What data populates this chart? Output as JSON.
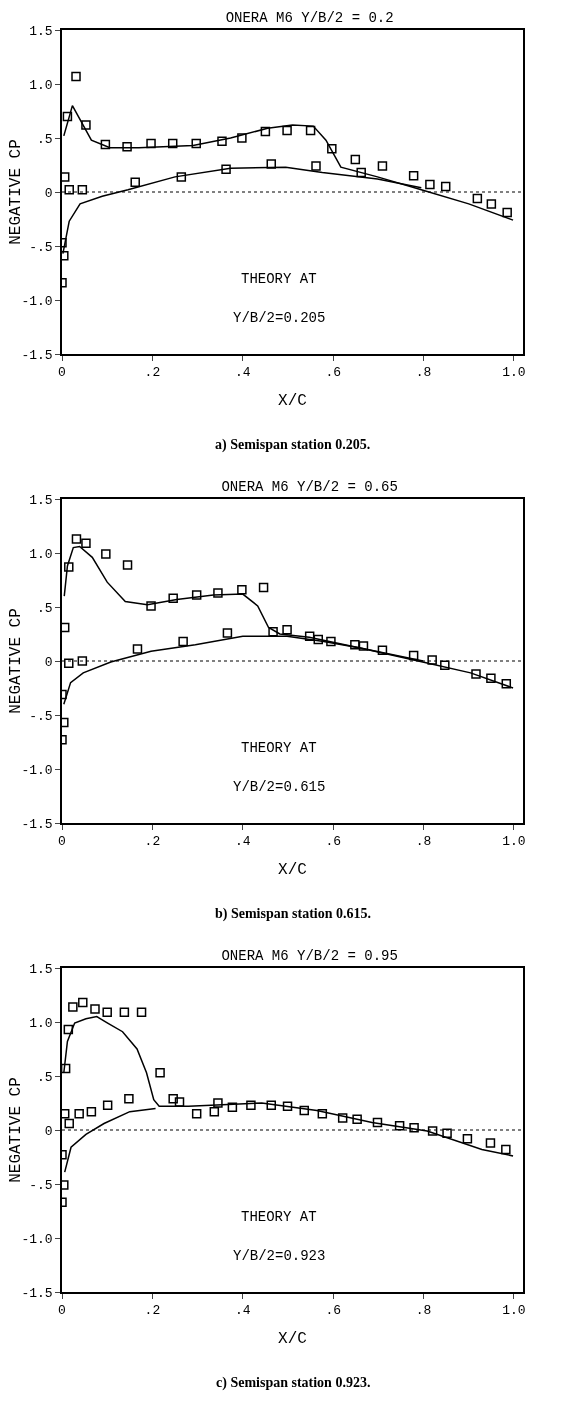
{
  "chart_data": [
    {
      "type": "scatter",
      "title": "ONERA M6 Y/B/2 = 0.2",
      "xlabel": "X/C",
      "ylabel": "NEGATIVE CP",
      "annotations": [
        "THEORY AT",
        "Y/B/2=0.205",
        "a) Semispan station 0.205."
      ],
      "xlim": [
        0,
        1.02
      ],
      "xticks": [
        {
          "value": 0,
          "label": "0"
        },
        {
          "value": 0.2,
          "label": ".2"
        },
        {
          "value": 0.4,
          "label": ".4"
        },
        {
          "value": 0.6,
          "label": ".6"
        },
        {
          "value": 0.8,
          "label": ".8"
        },
        {
          "value": 1,
          "label": "1.0"
        }
      ],
      "ylim": [
        -1.5,
        1.5
      ],
      "yticks": [
        -1.5,
        {
          "value": -1,
          "label": "-1.0"
        },
        {
          "value": -0.5,
          "label": "-.5"
        },
        0,
        {
          "value": 0.5,
          "label": ".5"
        },
        {
          "value": 1,
          "label": "1.0"
        },
        1.5
      ],
      "ref_lines": [
        {
          "axis": "y",
          "value": 0,
          "line_style": "dotted",
          "color": "#000000"
        }
      ],
      "series": [
        {
          "marker": "square",
          "color": "#000000",
          "x": [
            0,
            0.004,
            0,
            0.006,
            0.012,
            0.016,
            0.031,
            0.045,
            0.053,
            0.096,
            0.144,
            0.162,
            0.197,
            0.245,
            0.264,
            0.297,
            0.354,
            0.363,
            0.398,
            0.45,
            0.463,
            0.498,
            0.55,
            0.562,
            0.597,
            0.649,
            0.662,
            0.709,
            0.778,
            0.814,
            0.849,
            0.919,
            0.95,
            0.985
          ],
          "values": [
            -0.84,
            -0.59,
            -0.47,
            0.14,
            0.7,
            0.02,
            1.07,
            0.02,
            0.62,
            0.44,
            0.42,
            0.09,
            0.45,
            0.45,
            0.14,
            0.45,
            0.47,
            0.21,
            0.5,
            0.56,
            0.26,
            0.57,
            0.57,
            0.24,
            0.4,
            0.3,
            0.18,
            0.24,
            0.15,
            0.07,
            0.05,
            -0.06,
            -0.11,
            -0.19
          ]
        },
        {
          "type": "line",
          "color": "#000000",
          "x": [
            0.004,
            0.023,
            0.065,
            0.106,
            0.17,
            0.29,
            0.373,
            0.455,
            0.51,
            0.556,
            0.584,
            0.617,
            0.698,
            0.795,
            0.9,
            0.998
          ],
          "values": [
            0.52,
            0.8,
            0.48,
            0.41,
            0.41,
            0.43,
            0.5,
            0.59,
            0.62,
            0.61,
            0.48,
            0.23,
            0.14,
            0.02,
            -0.11,
            -0.26
          ]
        },
        {
          "type": "line",
          "color": "#000000",
          "x": [
            0.002,
            0.016,
            0.04,
            0.089,
            0.146,
            0.25,
            0.373,
            0.495,
            0.576,
            0.698,
            0.795
          ],
          "values": [
            -0.57,
            -0.27,
            -0.11,
            -0.04,
            0.02,
            0.14,
            0.22,
            0.23,
            0.18,
            0.12,
            0.04
          ]
        }
      ]
    },
    {
      "type": "scatter",
      "title": "ONERA M6 Y/B/2 = 0.65",
      "xlabel": "X/C",
      "ylabel": "NEGATIVE CP",
      "annotations": [
        "THEORY AT",
        "Y/B/2=0.615",
        "b) Semispan station 0.615."
      ],
      "xlim": [
        0,
        1.02
      ],
      "xticks": [
        {
          "value": 0,
          "label": "0"
        },
        {
          "value": 0.2,
          "label": ".2"
        },
        {
          "value": 0.4,
          "label": ".4"
        },
        {
          "value": 0.6,
          "label": ".6"
        },
        {
          "value": 0.8,
          "label": ".8"
        },
        {
          "value": 1,
          "label": "1.0"
        }
      ],
      "ylim": [
        -1.5,
        1.5
      ],
      "yticks": [
        -1.5,
        {
          "value": -1,
          "label": "-1.0"
        },
        {
          "value": -0.5,
          "label": "-.5"
        },
        0,
        {
          "value": 0.5,
          "label": ".5"
        },
        {
          "value": 1,
          "label": "1.0"
        },
        1.5
      ],
      "ref_lines": [
        {
          "axis": "y",
          "value": 0,
          "line_style": "dotted",
          "color": "#000000"
        }
      ],
      "series": [
        {
          "marker": "square",
          "color": "#000000",
          "x": [
            0,
            0.004,
            0,
            0.006,
            0.015,
            0.015,
            0.032,
            0.045,
            0.053,
            0.097,
            0.145,
            0.167,
            0.197,
            0.246,
            0.268,
            0.298,
            0.345,
            0.366,
            0.398,
            0.446,
            0.467,
            0.498,
            0.548,
            0.567,
            0.595,
            0.648,
            0.667,
            0.709,
            0.778,
            0.819,
            0.847,
            0.916,
            0.949,
            0.983
          ],
          "values": [
            -0.73,
            -0.57,
            -0.31,
            0.31,
            0.87,
            -0.02,
            1.13,
            0,
            1.09,
            0.99,
            0.89,
            0.11,
            0.51,
            0.58,
            0.18,
            0.61,
            0.63,
            0.26,
            0.66,
            0.68,
            0.27,
            0.29,
            0.23,
            0.2,
            0.18,
            0.15,
            0.14,
            0.1,
            0.05,
            0.01,
            -0.04,
            -0.12,
            -0.16,
            -0.21
          ]
        },
        {
          "type": "line",
          "color": "#000000",
          "x": [
            0.005,
            0.012,
            0.025,
            0.039,
            0.067,
            0.1,
            0.14,
            0.189,
            0.254,
            0.335,
            0.4,
            0.433,
            0.457,
            0.482,
            0.547,
            0.66,
            0.798,
            0.904,
            0.998
          ],
          "values": [
            0.6,
            0.88,
            1.05,
            1.06,
            0.96,
            0.73,
            0.55,
            0.52,
            0.57,
            0.61,
            0.62,
            0.51,
            0.31,
            0.25,
            0.22,
            0.12,
            -0.01,
            -0.11,
            -0.25
          ]
        },
        {
          "type": "line",
          "color": "#000000",
          "x": [
            0.004,
            0.019,
            0.047,
            0.108,
            0.197,
            0.295,
            0.4,
            0.498,
            0.579,
            0.66,
            0.799
          ],
          "values": [
            -0.4,
            -0.2,
            -0.11,
            -0.01,
            0.09,
            0.15,
            0.23,
            0.23,
            0.18,
            0.12,
            0
          ]
        }
      ]
    },
    {
      "type": "scatter",
      "title": "ONERA M6 Y/B/2 = 0.95",
      "xlabel": "X/C",
      "ylabel": "NEGATIVE CP",
      "annotations": [
        "THEORY AT",
        "Y/B/2=0.923",
        "c) Semispan station 0.923."
      ],
      "xlim": [
        0,
        1.02
      ],
      "xticks": [
        {
          "value": 0,
          "label": "0"
        },
        {
          "value": 0.2,
          "label": ".2"
        },
        {
          "value": 0.4,
          "label": ".4"
        },
        {
          "value": 0.6,
          "label": ".6"
        },
        {
          "value": 0.8,
          "label": ".8"
        },
        {
          "value": 1,
          "label": "1.0"
        }
      ],
      "ylim": [
        -1.5,
        1.5
      ],
      "yticks": [
        -1.5,
        {
          "value": -1,
          "label": "-1.0"
        },
        {
          "value": -0.5,
          "label": "-.5"
        },
        0,
        {
          "value": 0.5,
          "label": ".5"
        },
        {
          "value": 1,
          "label": "1.0"
        },
        1.5
      ],
      "ref_lines": [
        {
          "axis": "y",
          "value": 0,
          "line_style": "dotted",
          "color": "#000000"
        }
      ],
      "series": [
        {
          "marker": "square",
          "color": "#000000",
          "x": [
            0,
            0.004,
            0,
            0.006,
            0.008,
            0.014,
            0.016,
            0.024,
            0.038,
            0.046,
            0.065,
            0.073,
            0.1,
            0.101,
            0.138,
            0.148,
            0.176,
            0.217,
            0.246,
            0.26,
            0.298,
            0.337,
            0.345,
            0.377,
            0.418,
            0.463,
            0.499,
            0.536,
            0.576,
            0.621,
            0.653,
            0.698,
            0.747,
            0.779,
            0.82,
            0.852,
            0.897,
            0.948,
            0.982
          ],
          "values": [
            -0.67,
            -0.51,
            -0.23,
            0.15,
            0.57,
            0.93,
            0.06,
            1.14,
            0.15,
            1.18,
            0.17,
            1.12,
            1.09,
            0.23,
            1.09,
            0.29,
            1.09,
            0.53,
            0.29,
            0.26,
            0.15,
            0.17,
            0.25,
            0.21,
            0.23,
            0.23,
            0.22,
            0.18,
            0.15,
            0.11,
            0.1,
            0.07,
            0.04,
            0.02,
            -0.01,
            -0.03,
            -0.08,
            -0.12,
            -0.18
          ]
        },
        {
          "type": "line",
          "color": "#000000",
          "x": [
            0.004,
            0.012,
            0.028,
            0.053,
            0.077,
            0.101,
            0.134,
            0.166,
            0.187,
            0.203,
            0.215,
            0.28,
            0.442,
            0.564,
            0.686,
            0.808,
            0.929,
            0.998
          ],
          "values": [
            0.53,
            0.82,
            0.99,
            1.03,
            1.05,
            0.99,
            0.91,
            0.75,
            0.53,
            0.28,
            0.22,
            0.22,
            0.25,
            0.18,
            0.07,
            -0.01,
            -0.18,
            -0.24
          ]
        },
        {
          "type": "line",
          "color": "#000000",
          "x": [
            0.006,
            0.02,
            0.053,
            0.093,
            0.15,
            0.207
          ],
          "values": [
            -0.39,
            -0.16,
            -0.04,
            0.06,
            0.17,
            0.2
          ]
        }
      ]
    }
  ]
}
